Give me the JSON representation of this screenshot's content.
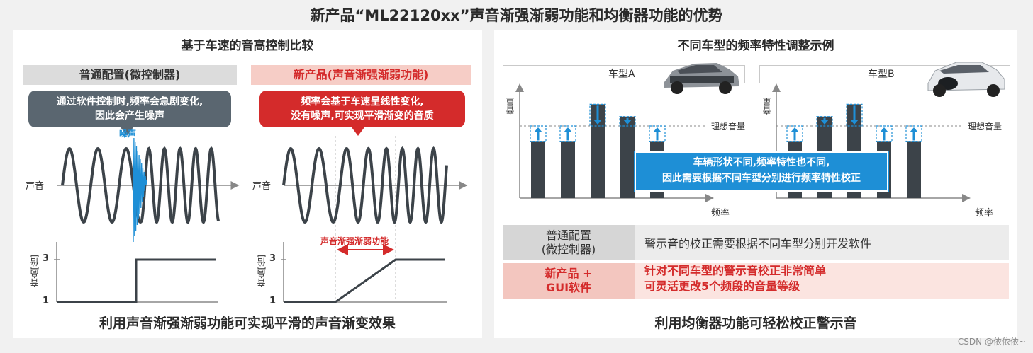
{
  "main_title": "新产品“ML22120xx”声音渐强渐弱功能和均衡器功能的优势",
  "left": {
    "title": "基于车速的音高控制比较",
    "conventional_header": "普通配置(微控制器)",
    "new_header": "新产品(声音渐强渐弱功能)",
    "conventional_bubble_line1": "通过软件控制时,频率会急剧变化,",
    "conventional_bubble_line2": "因此会产生噪声",
    "new_bubble_line1": "频率会基于车速呈线性变化,",
    "new_bubble_line2": "没有噪声,可实现平滑渐变的音质",
    "noise_label": "噪声",
    "sound_label": "声音",
    "pitch_label": "音高[倍]",
    "tick_high": "3",
    "tick_low": "1",
    "fade_label": "声音渐强渐弱功能",
    "bottom_text": "利用声音渐强渐弱功能可实现平滑的声音渐变效果",
    "colors": {
      "conventional": "#5a6670",
      "new": "#d42b2b",
      "noise": "#1e8fd6"
    }
  },
  "right": {
    "title": "不同车型的频率特性调整示例",
    "car_a_label": "车型A",
    "car_b_label": "车型B",
    "volume_label": "音量",
    "ideal_label": "理想音量",
    "freq_label": "频率",
    "callout_line1": "车辆形状不同,频率特性也不同,",
    "callout_line2": "因此需要根据不同车型分别进行频率特性校正",
    "row1_label_line1": "普通配置",
    "row1_label_line2": "(微控制器)",
    "row1_text": "警示音的校正需要根据不同车型分别开发软件",
    "row2_label_line1": "新产品 +",
    "row2_label_line2": "GUI软件",
    "row2_text_line1": "针对不同车型的警示音校正非常简单",
    "row2_text_line2": "可灵活更改5个频段的音量等级",
    "bottom_text": "利用均衡器功能可轻松校正警示音",
    "colors": {
      "bar": "#3c4349",
      "callout": "#1e8fd6",
      "accent": "#d42b2b"
    }
  },
  "chart_data": [
    {
      "type": "bar",
      "name": "车型A",
      "ylabel": "音量",
      "xlabel": "频率",
      "reference_line": "理想音量",
      "values": [
        0.78,
        0.78,
        1.3,
        1.13,
        0.78
      ],
      "ideal": 1.0,
      "bands": 5
    },
    {
      "type": "bar",
      "name": "车型B",
      "ylabel": "音量",
      "xlabel": "频率",
      "reference_line": "理想音量",
      "values": [
        0.78,
        1.13,
        1.3,
        0.78,
        0.78
      ],
      "ideal": 1.0,
      "bands": 5
    }
  ],
  "watermark": "CSDN @依依依~"
}
